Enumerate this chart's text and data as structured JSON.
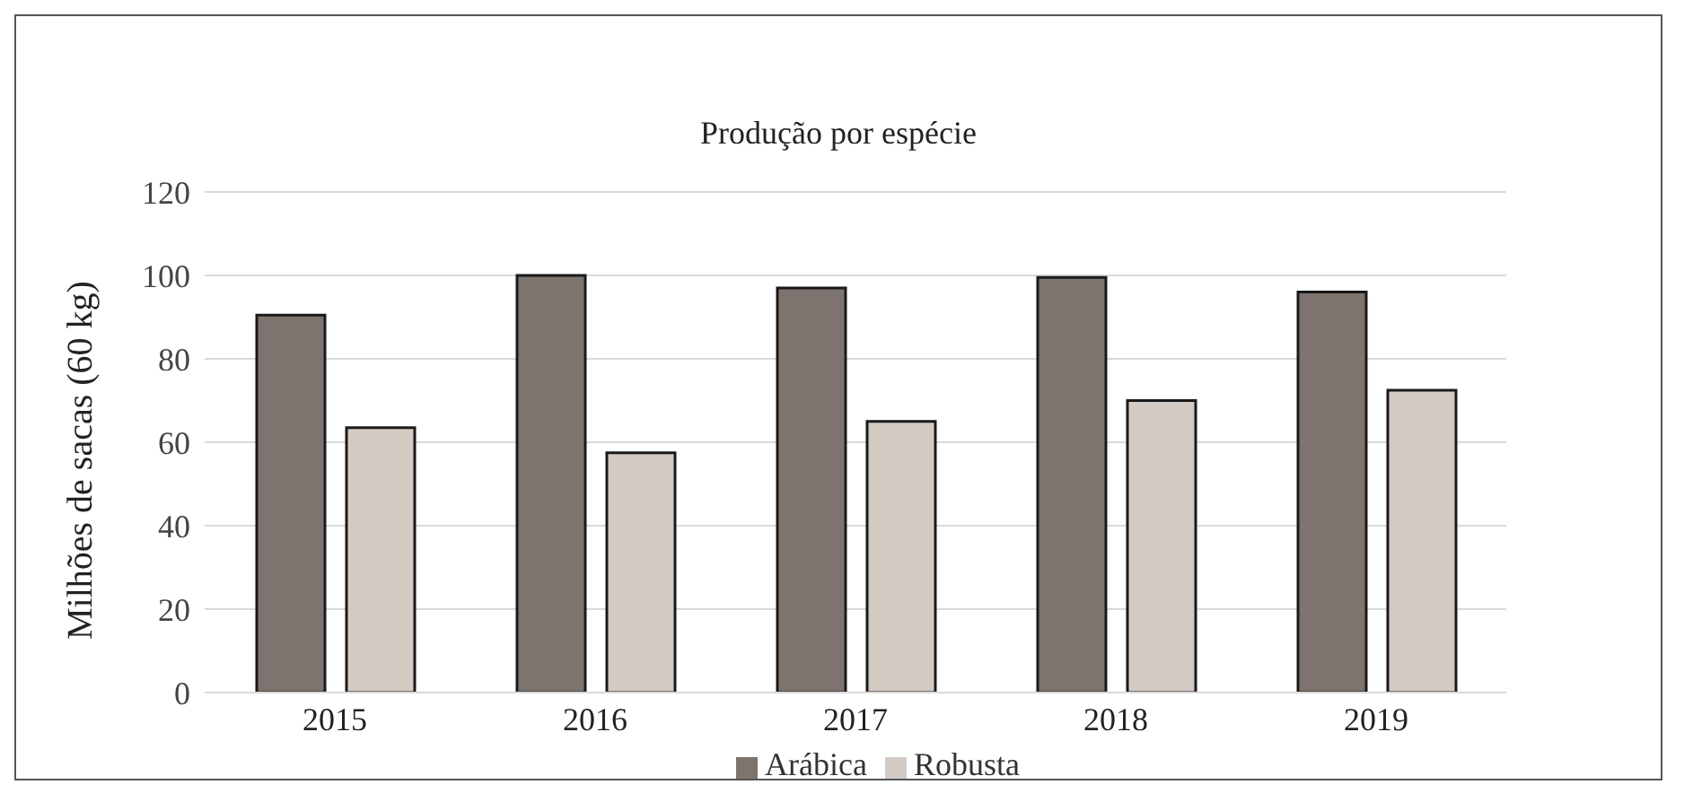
{
  "chart_data": {
    "type": "bar",
    "title": "Produção por espécie",
    "ylabel": "Milhões de sacas (60 kg)",
    "categories": [
      "2015",
      "2016",
      "2017",
      "2018",
      "2019"
    ],
    "series": [
      {
        "name": "Arábica",
        "color": "#7d746f",
        "values": [
          90.5,
          100,
          97,
          99.5,
          96
        ]
      },
      {
        "name": "Robusta",
        "color": "#d3cac4",
        "values": [
          63.5,
          57.5,
          65,
          70,
          72.5
        ]
      }
    ],
    "ylim": [
      0,
      120
    ],
    "yticks": [
      0,
      20,
      40,
      60,
      80,
      100,
      120
    ],
    "grid": "y",
    "legend": "bottom"
  }
}
